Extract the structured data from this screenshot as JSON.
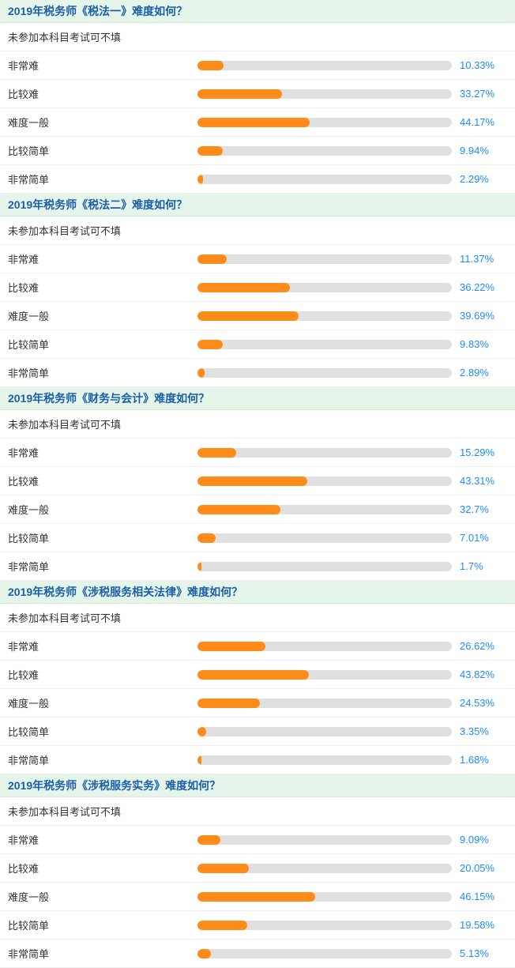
{
  "colors": {
    "header_bg": "#e6f5e9",
    "header_text": "#1a5fa8",
    "bar_bg": "#e0e0e0",
    "bar_fill": "#ff8c1a",
    "percent_text": "#1a8cff",
    "label_text": "#333333"
  },
  "bar_scale_max": 100,
  "sections": [
    {
      "title": "2019年税务师《税法一》难度如何？",
      "rows": [
        {
          "label": "未参加本科目考试可不填",
          "value": null,
          "percent": ""
        },
        {
          "label": "非常难",
          "value": 10.33,
          "percent": "10.33%"
        },
        {
          "label": "比较难",
          "value": 33.27,
          "percent": "33.27%"
        },
        {
          "label": "难度一般",
          "value": 44.17,
          "percent": "44.17%"
        },
        {
          "label": "比较简单",
          "value": 9.94,
          "percent": "9.94%"
        },
        {
          "label": "非常简单",
          "value": 2.29,
          "percent": "2.29%"
        }
      ]
    },
    {
      "title": "2019年税务师《税法二》难度如何？",
      "rows": [
        {
          "label": "未参加本科目考试可不填",
          "value": null,
          "percent": ""
        },
        {
          "label": "非常难",
          "value": 11.37,
          "percent": "11.37%"
        },
        {
          "label": "比较难",
          "value": 36.22,
          "percent": "36.22%"
        },
        {
          "label": "难度一般",
          "value": 39.69,
          "percent": "39.69%"
        },
        {
          "label": "比较简单",
          "value": 9.83,
          "percent": "9.83%"
        },
        {
          "label": "非常简单",
          "value": 2.89,
          "percent": "2.89%"
        }
      ]
    },
    {
      "title": "2019年税务师《财务与会计》难度如何？",
      "rows": [
        {
          "label": "未参加本科目考试可不填",
          "value": null,
          "percent": ""
        },
        {
          "label": "非常难",
          "value": 15.29,
          "percent": "15.29%"
        },
        {
          "label": "比较难",
          "value": 43.31,
          "percent": "43.31%"
        },
        {
          "label": "难度一般",
          "value": 32.7,
          "percent": "32.7%"
        },
        {
          "label": "比较简单",
          "value": 7.01,
          "percent": "7.01%"
        },
        {
          "label": "非常简单",
          "value": 1.7,
          "percent": "1.7%"
        }
      ]
    },
    {
      "title": "2019年税务师《涉税服务相关法律》难度如何？",
      "rows": [
        {
          "label": "未参加本科目考试可不填",
          "value": null,
          "percent": ""
        },
        {
          "label": "非常难",
          "value": 26.62,
          "percent": "26.62%"
        },
        {
          "label": "比较难",
          "value": 43.82,
          "percent": "43.82%"
        },
        {
          "label": "难度一般",
          "value": 24.53,
          "percent": "24.53%"
        },
        {
          "label": "比较简单",
          "value": 3.35,
          "percent": "3.35%"
        },
        {
          "label": "非常简单",
          "value": 1.68,
          "percent": "1.68%"
        }
      ]
    },
    {
      "title": "2019年税务师《涉税服务实务》难度如何？",
      "rows": [
        {
          "label": "未参加本科目考试可不填",
          "value": null,
          "percent": ""
        },
        {
          "label": "非常难",
          "value": 9.09,
          "percent": "9.09%"
        },
        {
          "label": "比较难",
          "value": 20.05,
          "percent": "20.05%"
        },
        {
          "label": "难度一般",
          "value": 46.15,
          "percent": "46.15%"
        },
        {
          "label": "比较简单",
          "value": 19.58,
          "percent": "19.58%"
        },
        {
          "label": "非常简单",
          "value": 5.13,
          "percent": "5.13%"
        }
      ]
    }
  ]
}
